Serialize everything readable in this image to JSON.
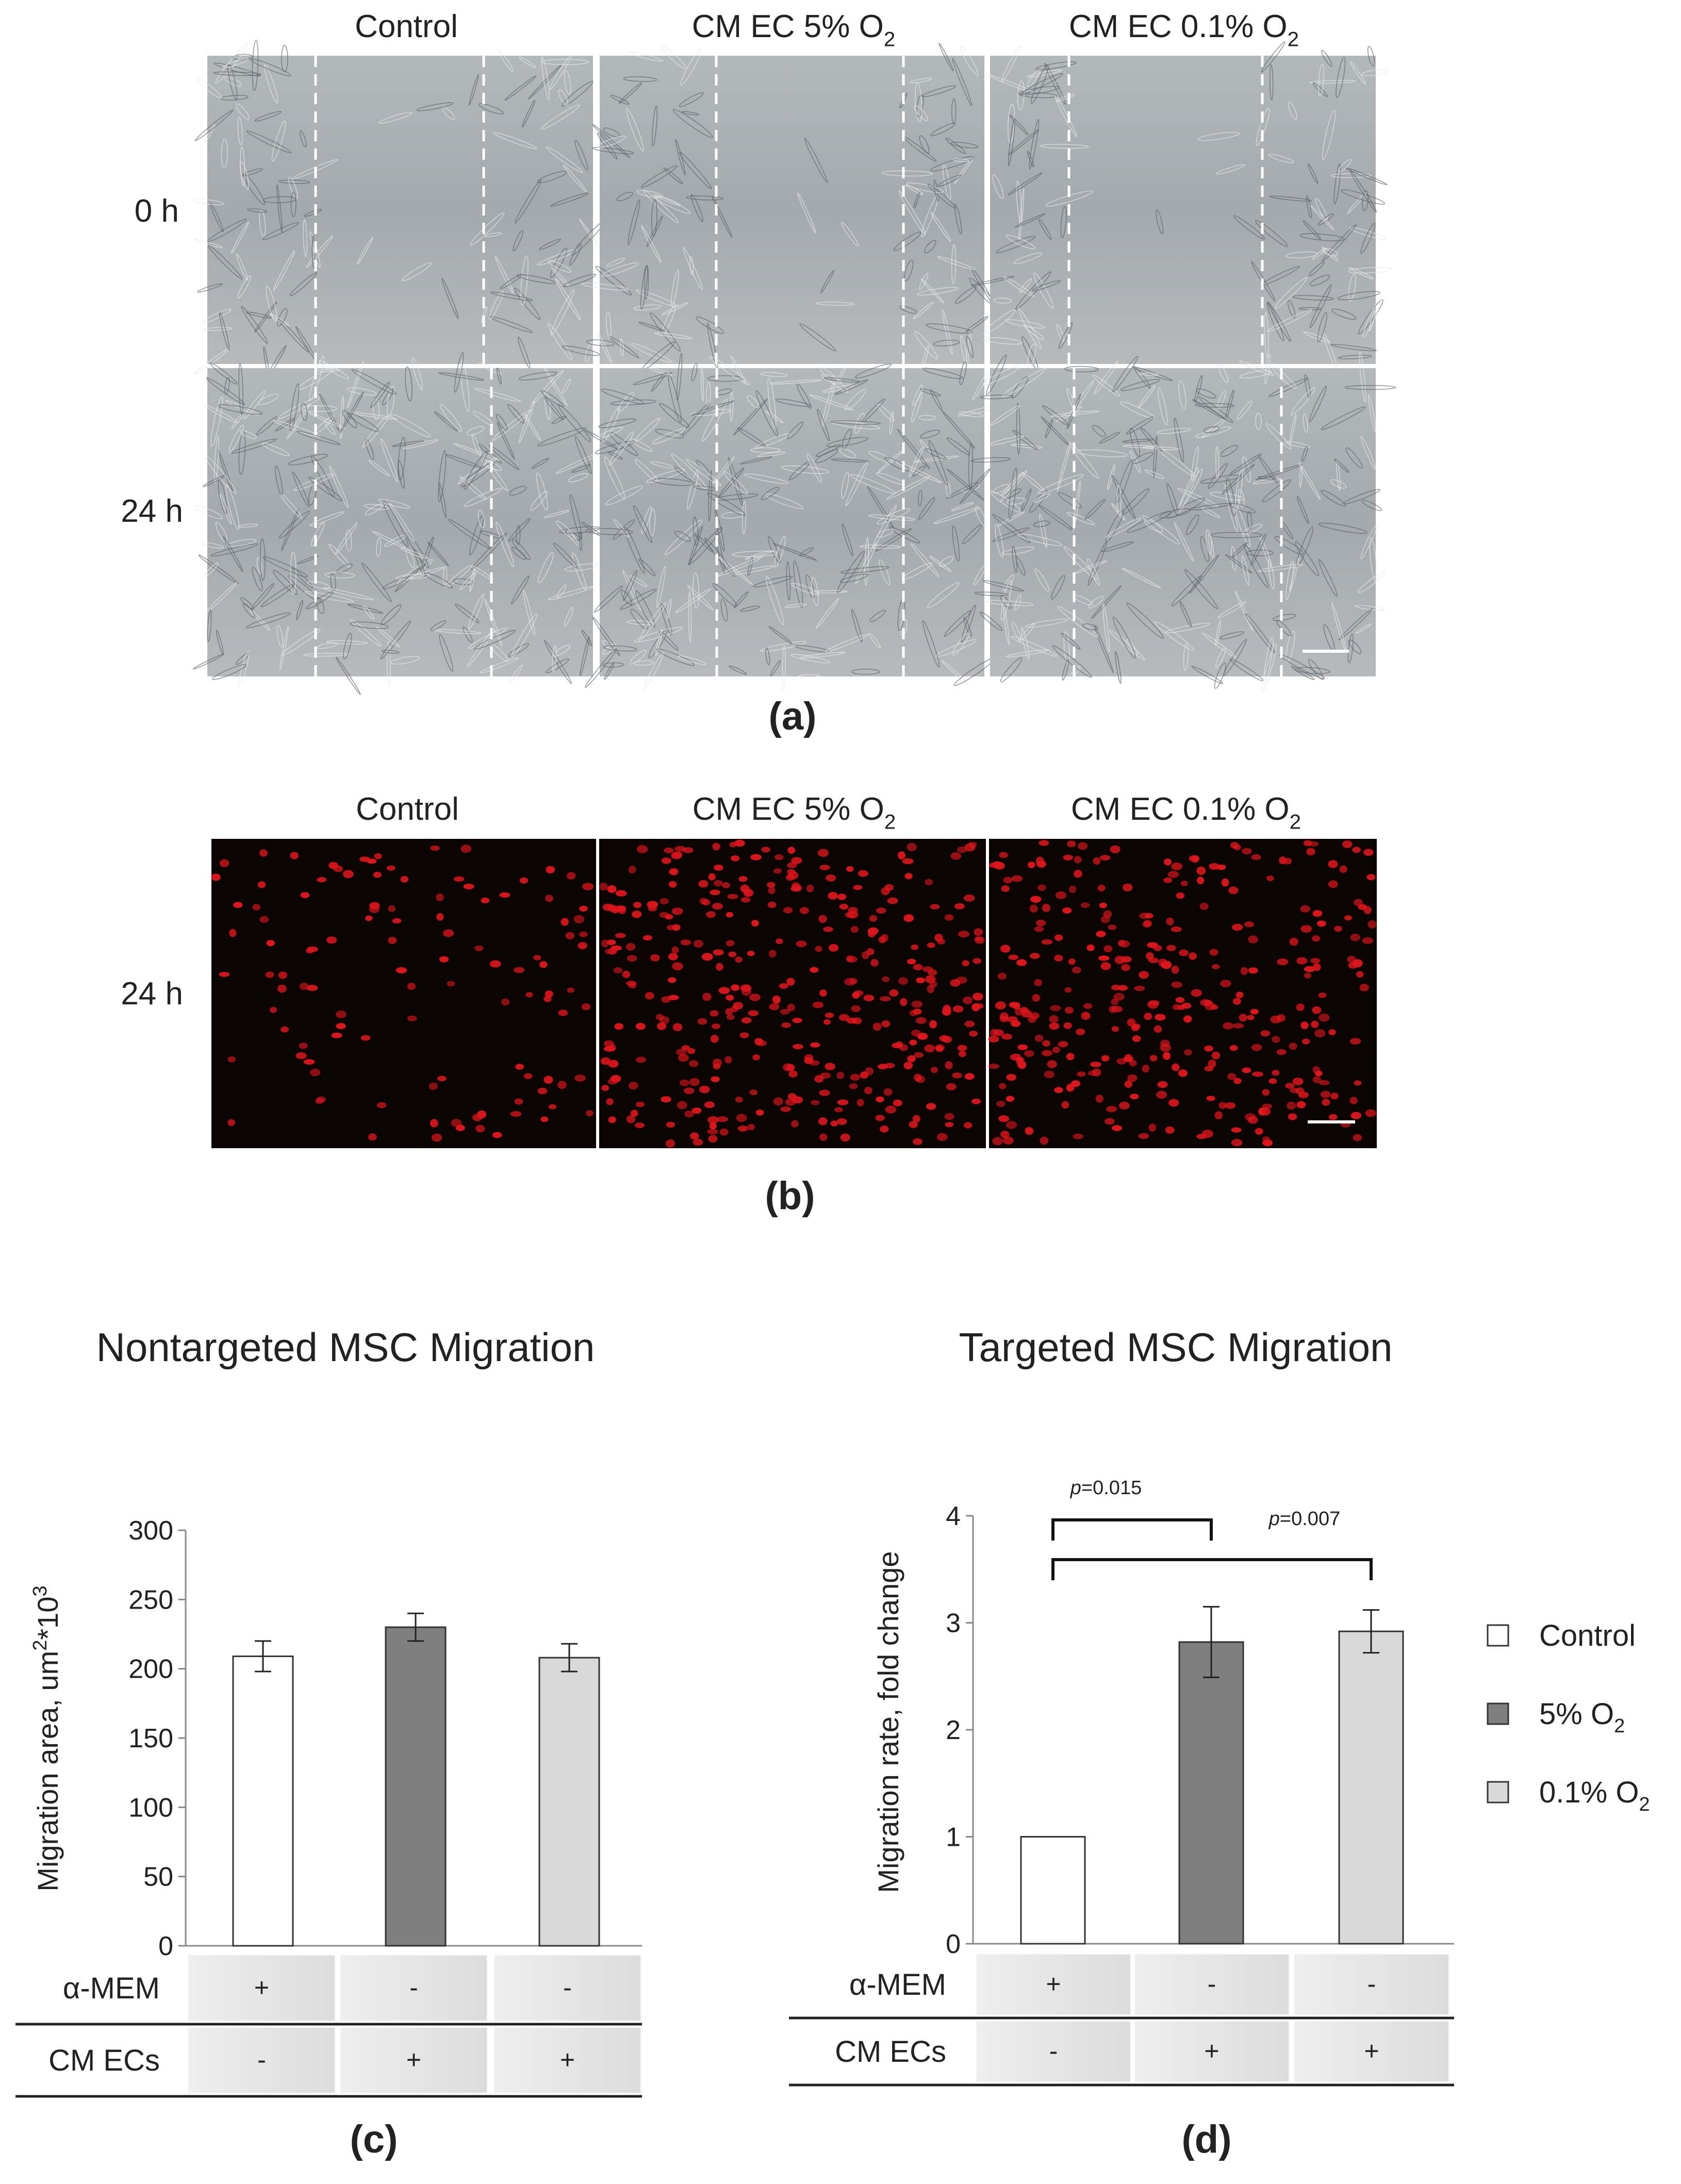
{
  "panel_a": {
    "columns": [
      "Control",
      "CM EC 5% O",
      "CM EC 0.1% O"
    ],
    "column_subscript": "2",
    "rows": [
      "0 h",
      "24 h"
    ],
    "label": "(a)"
  },
  "panel_b": {
    "columns": [
      "Control",
      "CM EC 5% O",
      "CM EC 0.1% O"
    ],
    "column_subscript": "2",
    "rows": [
      "24 h"
    ],
    "label": "(b)"
  },
  "colors": {
    "control": "#ffffff",
    "o2_5": "#7f7f7f",
    "o2_01": "#d9d9d9",
    "phase_bg": "#a7acb0",
    "fluor_bg": "#0c0303",
    "fluor_nucleus": "#e0151c"
  },
  "chart_data": [
    {
      "type": "bar",
      "title": "Nontargeted MSC Migration",
      "ylabel": "Migration area,  um",
      "ylabel_sup1": "2",
      "ylabel_mid": "*10",
      "ylabel_sup2": "3",
      "ylim": [
        0,
        300
      ],
      "yticks": [
        0,
        50,
        100,
        150,
        200,
        250,
        300
      ],
      "categories": [
        "Control",
        "5% O2",
        "0.1% O2"
      ],
      "values": [
        209,
        230,
        208
      ],
      "errors": [
        11,
        10,
        10
      ],
      "table": {
        "rows": [
          {
            "label": "α-MEM",
            "cells": [
              "+",
              "-",
              "-"
            ]
          },
          {
            "label": "CM ECs",
            "cells": [
              "-",
              "+",
              "+"
            ]
          }
        ]
      },
      "panel_label": "(c)"
    },
    {
      "type": "bar",
      "title": "Targeted MSC Migration",
      "ylabel": "Migration rate, fold change",
      "ylim": [
        0,
        4
      ],
      "yticks": [
        0,
        1,
        2,
        3,
        4
      ],
      "categories": [
        "Control",
        "5% O2",
        "0.1% O2"
      ],
      "values": [
        1.0,
        2.82,
        2.92
      ],
      "errors": [
        0,
        0.33,
        0.2
      ],
      "annotations": [
        {
          "text_italic": "p",
          "text": "=0.015",
          "from": 0,
          "to": 1
        },
        {
          "text_italic": "p",
          "text": "=0.007",
          "from": 0,
          "to": 2
        }
      ],
      "table": {
        "rows": [
          {
            "label": "α-MEM",
            "cells": [
              "+",
              "-",
              "-"
            ]
          },
          {
            "label": "CM ECs",
            "cells": [
              "-",
              "+",
              "+"
            ]
          }
        ]
      },
      "legend": {
        "position": "right",
        "entries": [
          {
            "label": "Control",
            "sub": ""
          },
          {
            "label": "5% O",
            "sub": "2"
          },
          {
            "label": "0.1% O",
            "sub": "2"
          }
        ]
      },
      "panel_label": "(d)"
    }
  ]
}
